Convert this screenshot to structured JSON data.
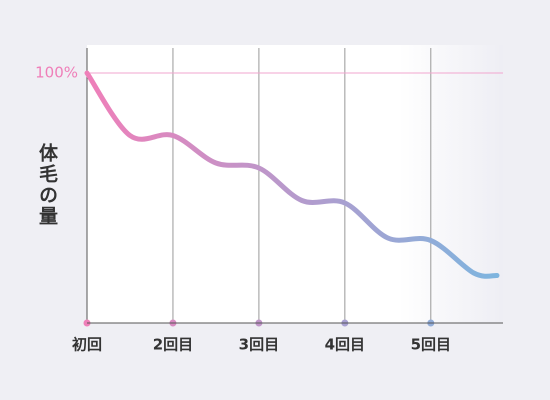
{
  "chart_data": {
    "type": "line",
    "y_label": "体毛の量",
    "x": [
      1,
      1.5,
      2,
      2.5,
      3,
      3.5,
      4,
      4.5,
      5,
      5.5,
      5.77
    ],
    "series": [
      {
        "colors": [
          "#ef7fb9",
          "#7db5df"
        ],
        "values": [
          100,
          75,
          75,
          64,
          62,
          49,
          48,
          34,
          33,
          20,
          19
        ]
      }
    ],
    "xlim": [
      1,
      5.84
    ],
    "xticks": [
      {
        "value": 1,
        "label": "初回"
      },
      {
        "value": 2,
        "label": "2回目"
      },
      {
        "value": 3,
        "label": "3回目"
      },
      {
        "value": 4,
        "label": "4回目"
      },
      {
        "value": 5,
        "label": "5回目"
      }
    ],
    "ylim": [
      0,
      110
    ],
    "yticks": [
      {
        "value": 100,
        "label": "100%"
      }
    ],
    "grid": true
  }
}
